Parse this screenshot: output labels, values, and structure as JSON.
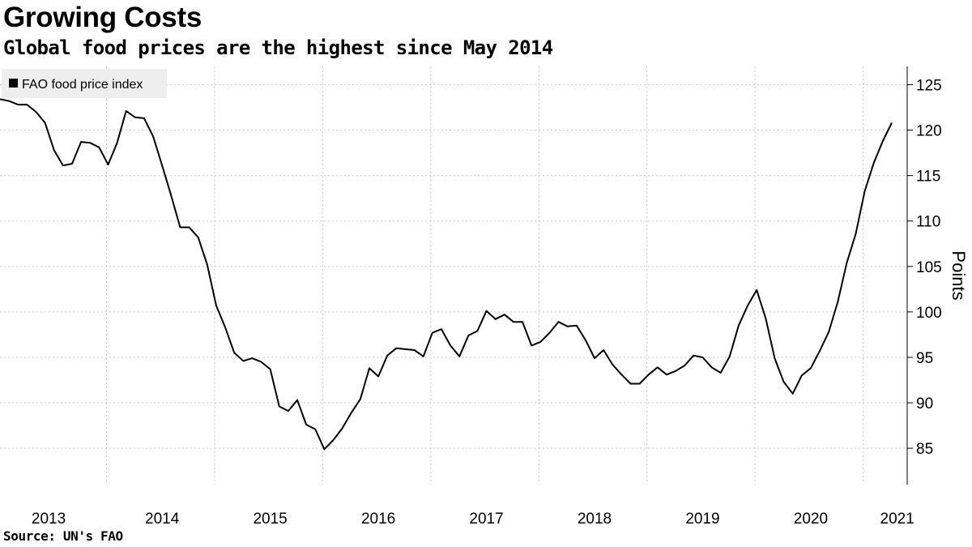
{
  "header": {
    "title": "Growing Costs",
    "subtitle": "Global food prices are the highest since May 2014"
  },
  "footer": {
    "source": "Source: UN's FAO"
  },
  "chart_data": {
    "type": "line",
    "title": "Growing Costs",
    "subtitle": "Global food prices are the highest since May 2014",
    "ylabel": "Points",
    "xlabel": "",
    "ylim": [
      81,
      127
    ],
    "xlim": [
      "2013-01",
      "2021-04"
    ],
    "yticks": [
      85,
      90,
      95,
      100,
      105,
      110,
      115,
      120,
      125
    ],
    "xticks": [
      "2013",
      "2014",
      "2015",
      "2016",
      "2017",
      "2018",
      "2019",
      "2020",
      "2021"
    ],
    "grid": true,
    "legend_position": "top-left",
    "series": [
      {
        "name": "FAO food price index",
        "color": "#000000",
        "start": "2013-01",
        "frequency": "monthly",
        "values": [
          123.4,
          123.2,
          122.8,
          122.8,
          122.0,
          120.8,
          117.8,
          116.1,
          116.3,
          118.7,
          118.6,
          118.1,
          116.2,
          118.6,
          122.1,
          121.4,
          121.3,
          119.3,
          116.1,
          112.8,
          109.3,
          109.3,
          108.2,
          105.2,
          100.7,
          98.3,
          95.5,
          94.6,
          94.9,
          94.5,
          93.7,
          89.6,
          89.1,
          90.3,
          87.6,
          87.1,
          84.9,
          85.9,
          87.2,
          88.9,
          90.4,
          93.8,
          92.9,
          95.2,
          96.0,
          95.9,
          95.8,
          95.1,
          97.7,
          98.1,
          96.3,
          95.1,
          97.4,
          97.9,
          100.1,
          99.2,
          99.7,
          98.9,
          98.9,
          96.3,
          96.7,
          97.7,
          98.9,
          98.4,
          98.5,
          96.9,
          94.9,
          95.8,
          94.2,
          93.1,
          92.1,
          92.1,
          93.1,
          93.9,
          93.1,
          93.5,
          94.1,
          95.2,
          95.0,
          93.9,
          93.3,
          95.1,
          98.5,
          100.7,
          102.4,
          99.3,
          94.9,
          92.3,
          91.0,
          93.0,
          93.8,
          95.7,
          97.8,
          101.1,
          105.4,
          108.6,
          113.3,
          116.4,
          118.8,
          120.8
        ]
      }
    ]
  }
}
